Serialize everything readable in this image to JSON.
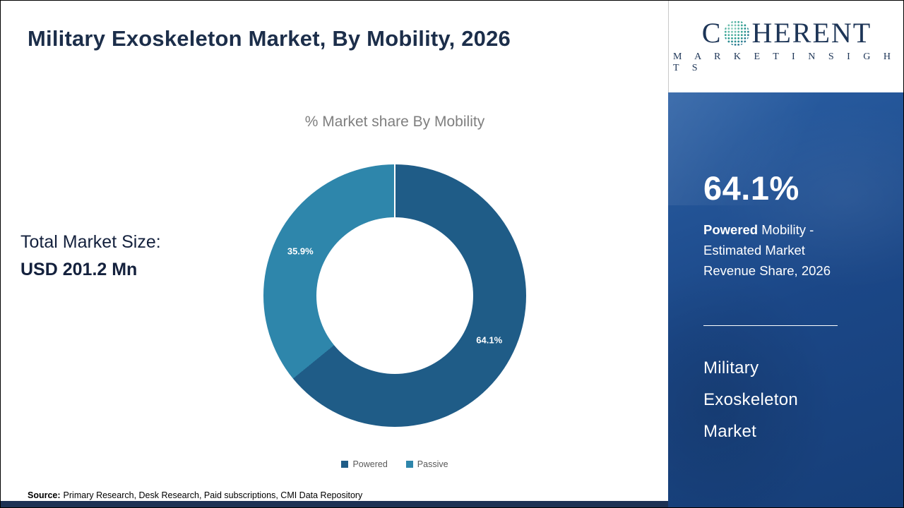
{
  "page": {
    "title": "Military Exoskeleton Market, By Mobility, 2026"
  },
  "logo": {
    "brand_part1": "C",
    "brand_part2": "HERENT",
    "brand_sub": "M A R K E T   I N S I G H T S",
    "globe_icon": "dotted-globe-icon"
  },
  "stats": {
    "total_label": "Total Market Size:",
    "total_value": "USD 201.2 Mn"
  },
  "chart_data": {
    "type": "pie",
    "donut": true,
    "title": "% Market share By Mobility",
    "categories": [
      "Powered",
      "Passive"
    ],
    "values": [
      64.1,
      35.9
    ],
    "unit": "%",
    "colors": [
      "#1f5c87",
      "#2e86ab"
    ],
    "data_labels": [
      "64.1%",
      "35.9%"
    ],
    "legend_position": "bottom",
    "start_angle_deg": 0,
    "direction": "clockwise"
  },
  "sidebar": {
    "highlight_value": "64.1%",
    "caption_bold": "Powered",
    "caption_rest": " Mobility - Estimated Market Revenue Share, 2026",
    "market_name": "Military Exoskeleton Market",
    "market_name_lines": [
      "Military",
      "Exoskeleton",
      "Market"
    ]
  },
  "footer": {
    "source_label": "Source:",
    "source_text": "Primary Research, Desk Research, Paid subscriptions, CMI Data Repository"
  },
  "colors": {
    "powered": "#1f5c87",
    "passive": "#2e86ab",
    "sidebar_bg": "#1b4787",
    "title_navy": "#1c2e4a",
    "footer_bar": "#1d3154"
  }
}
